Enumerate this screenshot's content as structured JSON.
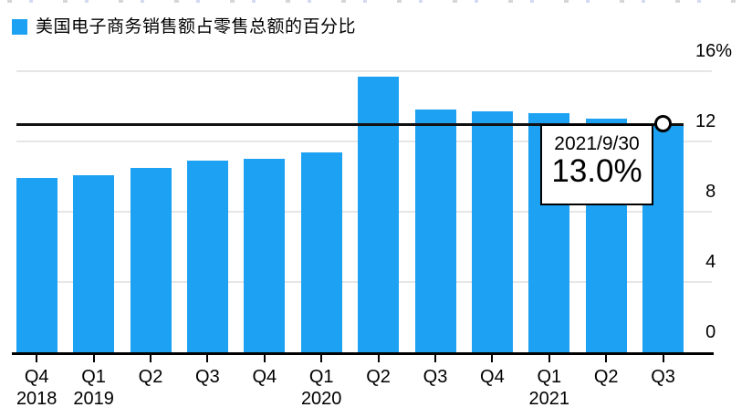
{
  "legend": {
    "label": "美国电子商务销售额占零售总额的百分比"
  },
  "tooltip": {
    "date": "2021/9/30",
    "value": "13.0%"
  },
  "chart_data": {
    "type": "bar",
    "title": "",
    "categories": [
      "2018 Q4",
      "2019 Q1",
      "2019 Q2",
      "2019 Q3",
      "2019 Q4",
      "2020 Q1",
      "2020 Q2",
      "2020 Q3",
      "2020 Q4",
      "2021 Q1",
      "2021 Q2",
      "2021 Q3"
    ],
    "x_tick_labels": [
      "Q4",
      "Q1",
      "Q2",
      "Q3",
      "Q4",
      "Q1",
      "Q2",
      "Q3",
      "Q4",
      "Q1",
      "Q2",
      "Q3"
    ],
    "year_labels": [
      {
        "label": "2018",
        "tick_index": 0
      },
      {
        "label": "2019",
        "tick_index": 1
      },
      {
        "label": "2020",
        "tick_index": 5
      },
      {
        "label": "2021",
        "tick_index": 9
      }
    ],
    "values": [
      9.9,
      10.1,
      10.5,
      10.9,
      11.0,
      11.4,
      15.7,
      13.8,
      13.7,
      13.6,
      13.3,
      13.0
    ],
    "series_name": "美国电子商务销售额占零售总额的百分比",
    "ylabel": "",
    "xlabel": "",
    "ylim": [
      0,
      16
    ],
    "y_ticks": [
      0,
      4,
      8,
      12,
      16
    ],
    "y_tick_top_suffix": "%",
    "grid": "horizontal",
    "legend_position": "top-left",
    "bar_color": "#1DA1F2",
    "grid_color": "#e6e6e6",
    "reference_line_value": 13.0,
    "last_point_marker": "circle-open",
    "latest_label": "2021/9/30",
    "latest_value_pct": 13.0
  }
}
